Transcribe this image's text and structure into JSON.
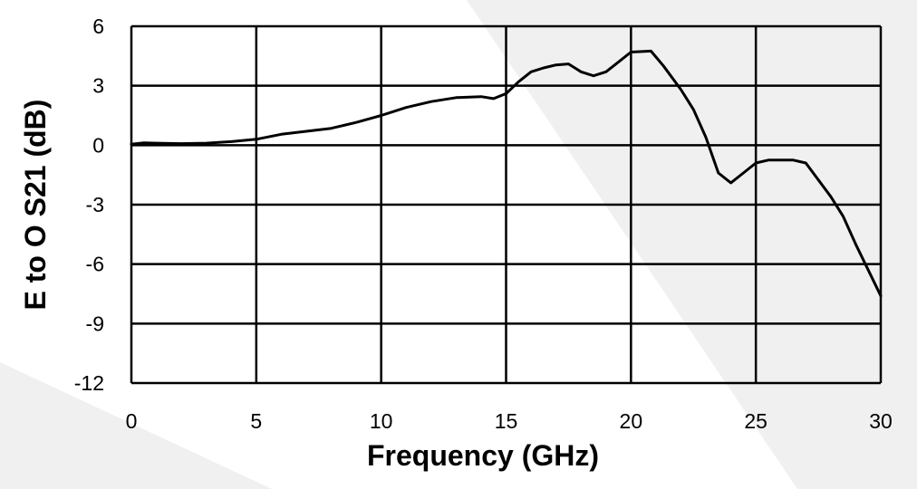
{
  "chart_data": {
    "type": "line",
    "title": "",
    "xlabel": "Frequency (GHz)",
    "ylabel": "E to O S21 (dB)",
    "xlim": [
      0,
      30
    ],
    "ylim": [
      -12,
      6
    ],
    "x_ticks": [
      0,
      5,
      10,
      15,
      20,
      25,
      30
    ],
    "y_ticks": [
      6,
      3,
      0,
      -3,
      -6,
      -9,
      -12
    ],
    "x_tick_labels": [
      "0",
      "5",
      "10",
      "15",
      "20",
      "25",
      "30"
    ],
    "y_tick_labels": [
      "6",
      "3",
      "0",
      "-3",
      "-6",
      "-9",
      "-12"
    ],
    "grid": true,
    "legend": "none",
    "series": [
      {
        "color": "#000000",
        "points": [
          [
            0,
            0.05
          ],
          [
            0.5,
            0.12
          ],
          [
            1,
            0.1
          ],
          [
            2,
            0.08
          ],
          [
            3,
            0.1
          ],
          [
            4,
            0.18
          ],
          [
            5,
            0.3
          ],
          [
            6,
            0.55
          ],
          [
            7,
            0.7
          ],
          [
            8,
            0.85
          ],
          [
            9,
            1.15
          ],
          [
            10,
            1.5
          ],
          [
            11,
            1.9
          ],
          [
            12,
            2.2
          ],
          [
            13,
            2.4
          ],
          [
            14,
            2.45
          ],
          [
            14.5,
            2.35
          ],
          [
            15,
            2.6
          ],
          [
            15.5,
            3.2
          ],
          [
            16,
            3.7
          ],
          [
            16.5,
            3.9
          ],
          [
            17,
            4.05
          ],
          [
            17.5,
            4.1
          ],
          [
            18,
            3.7
          ],
          [
            18.5,
            3.5
          ],
          [
            19,
            3.7
          ],
          [
            19.5,
            4.2
          ],
          [
            20,
            4.7
          ],
          [
            20.8,
            4.75
          ],
          [
            21.3,
            4.0
          ],
          [
            22,
            2.8
          ],
          [
            22.5,
            1.8
          ],
          [
            23,
            0.4
          ],
          [
            23.5,
            -1.4
          ],
          [
            24,
            -1.9
          ],
          [
            24.5,
            -1.4
          ],
          [
            25,
            -0.9
          ],
          [
            25.5,
            -0.75
          ],
          [
            26,
            -0.75
          ],
          [
            26.5,
            -0.75
          ],
          [
            27,
            -0.9
          ],
          [
            28,
            -2.6
          ],
          [
            28.5,
            -3.6
          ],
          [
            29,
            -5.0
          ],
          [
            29.5,
            -6.3
          ],
          [
            30,
            -7.6
          ]
        ]
      }
    ]
  }
}
